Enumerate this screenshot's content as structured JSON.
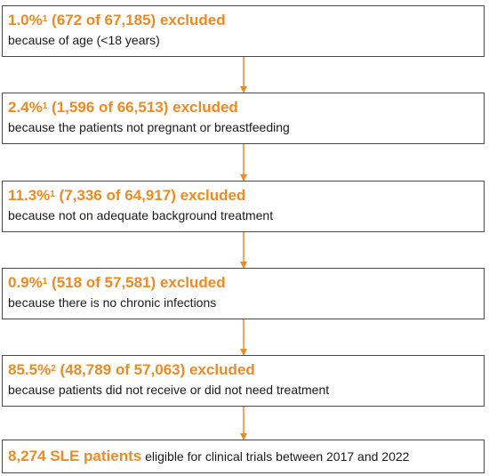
{
  "steps": [
    {
      "pct": "1.0%",
      "sup": "1",
      "detail": " (672 of 67,185) excluded",
      "reason": "because of age (<18 years)"
    },
    {
      "pct": "2.4%",
      "sup": "1",
      "detail": " (1,596 of 66,513) excluded",
      "reason": "because the patients not pregnant or breastfeeding"
    },
    {
      "pct": "11.3%",
      "sup": "1",
      "detail": " (7,336 of 64,917) excluded",
      "reason": "because not on adequate background treatment"
    },
    {
      "pct": "0.9%",
      "sup": "1",
      "detail": " (518 of 57,581) excluded",
      "reason": "because there is no chronic infections"
    },
    {
      "pct": "85.5%",
      "sup": "2",
      "detail": " (48,789 of 57,063) excluded",
      "reason": "because patients did not receive or did not need treatment"
    }
  ],
  "result": {
    "count": "8,274 SLE patients",
    "text": " eligible for clinical trials between 2017 and 2022"
  },
  "colors": {
    "accent": "#ED8B22",
    "border": "#4a4a4a",
    "text": "#1a1a1a"
  }
}
